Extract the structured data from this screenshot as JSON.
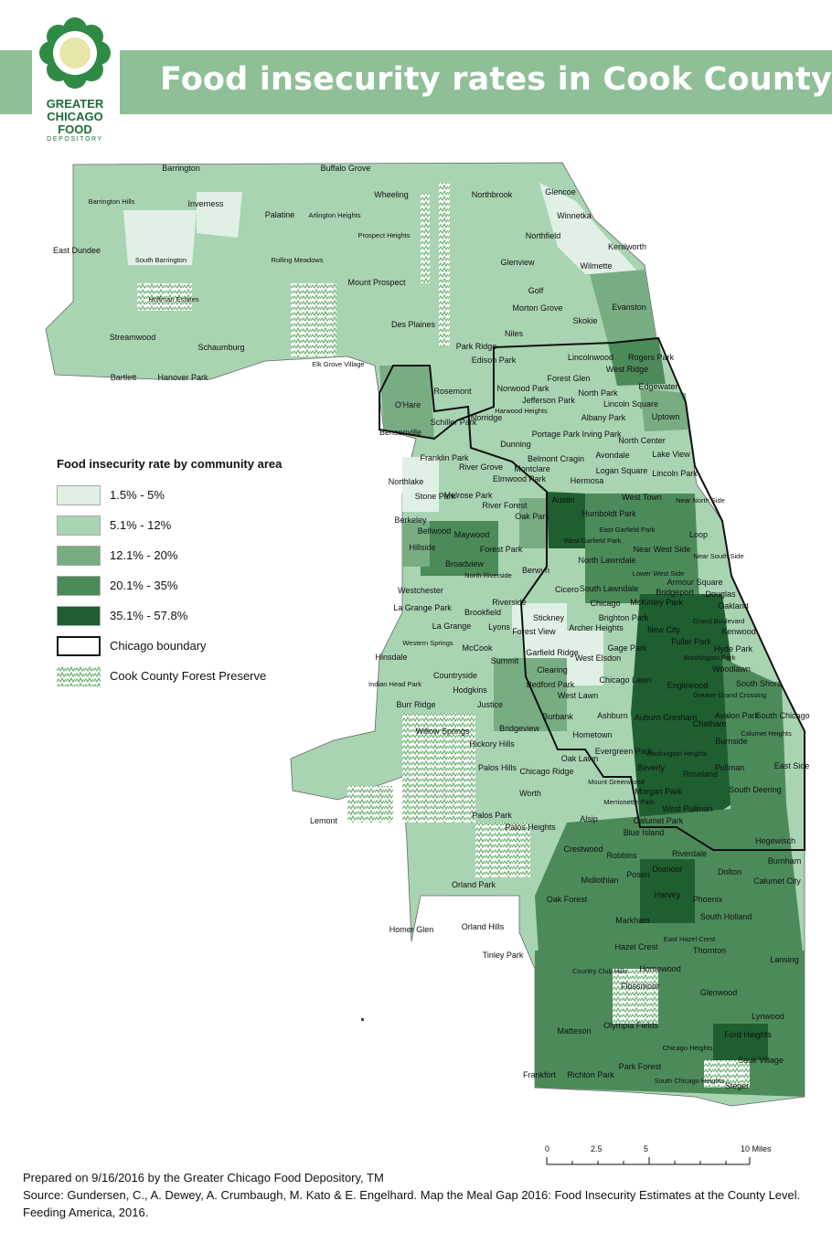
{
  "title": "Food insecurity rates in Cook County",
  "logo": {
    "line1": "GREATER",
    "line2": "CHICAGO",
    "line3": "FOOD",
    "line4": "DEPOSITORY"
  },
  "legend": {
    "title": "Food insecurity rate by community area",
    "items": [
      {
        "label": "1.5% - 5%",
        "color": "#e0f0e5"
      },
      {
        "label": "5.1% - 12%",
        "color": "#a8d4b2"
      },
      {
        "label": "12.1% - 20%",
        "color": "#78ad84"
      },
      {
        "label": "20.1% - 35%",
        "color": "#4c8a5a"
      },
      {
        "label": "35.1% - 57.8%",
        "color": "#1e5e30"
      },
      {
        "label": "Chicago boundary",
        "color": "#ffffff"
      },
      {
        "label": "Cook County Forest Preserve",
        "color": "#ffffff"
      }
    ]
  },
  "scale": {
    "ticks": [
      "0",
      "2.5",
      "5",
      "10 Miles"
    ]
  },
  "footer": {
    "line1": "Prepared on 9/16/2016 by the Greater Chicago Food Depository, TM",
    "line2": "Source: Gundersen, C., A. Dewey, A. Crumbaugh, M. Kato & E. Engelhard. Map the Meal Gap 2016: Food Insecurity Estimates at the County Level. Feeding America, 2016."
  },
  "places": [
    "Barrington",
    "Buffalo Grove",
    "Barrington Hills",
    "Inverness",
    "Palatine",
    "Arlington Heights",
    "Wheeling",
    "Northbrook",
    "Glencoe",
    "Winnetka",
    "East Dundee",
    "South Barrington",
    "Rolling Meadows",
    "Prospect Heights",
    "Northfield",
    "Kenilworth",
    "Glenview",
    "Wilmette",
    "Hoffman Estates",
    "Mount Prospect",
    "Golf",
    "Morton Grove",
    "Evanston",
    "Skokie",
    "Des Plaines",
    "Streamwood",
    "Schaumburg",
    "Niles",
    "Park Ridge",
    "Lincolnwood",
    "Elk Grove Village",
    "Bartlett",
    "Hanover Park",
    "Edison Park",
    "Rogers Park",
    "West Ridge",
    "O'Hare",
    "Rosemont",
    "Forest Glen",
    "Norwood Park",
    "North Park",
    "Edgewater",
    "Jefferson Park",
    "Lincoln Square",
    "Harwood Heights",
    "Norridge",
    "Albany Park",
    "Uptown",
    "Schiller Park",
    "Portage Park",
    "Irving Park",
    "North Center",
    "Bensenville",
    "Dunning",
    "Lake View",
    "Franklin Park",
    "Belmont Cragin",
    "Avondale",
    "Montclare",
    "Logan Square",
    "Lincoln Park",
    "River Grove",
    "Elmwood Park",
    "Hermosa",
    "Northlake",
    "Stone Park",
    "Melrose Park",
    "Austin",
    "West Town",
    "Near North Side",
    "River Forest",
    "Oak Park",
    "Humboldt Park",
    "Berkeley",
    "Bellwood",
    "Maywood",
    "East Garfield Park",
    "West Garfield Park",
    "Loop",
    "Hillside",
    "Forest Park",
    "Near West Side",
    "North Lawndale",
    "Near South Side",
    "Broadview",
    "North Riverside",
    "Berwyn",
    "Lower West Side",
    "Armour Square",
    "Westchester",
    "South Lawndale",
    "Bridgeport",
    "Douglas",
    "Cicero",
    "Riverside",
    "Chicago",
    "McKinley Park",
    "Oakland",
    "La Grange Park",
    "Brookfield",
    "Stickney",
    "Brighton Park",
    "Grand Boulevard",
    "La Grange",
    "Lyons",
    "Archer Heights",
    "New City",
    "Kenwood",
    "Western Springs",
    "Forest View",
    "Fuller Park",
    "McCook",
    "Gage Park",
    "Hyde Park",
    "Hinsdale",
    "Garfield Ridge",
    "Washington Park",
    "Summit",
    "West Elsdon",
    "Woodlawn",
    "Countryside",
    "Clearing",
    "Indian Head Park",
    "Chicago Lawn",
    "Englewood",
    "South Shore",
    "Hodgkins",
    "Bedford Park",
    "Greater Grand Crossing",
    "West Lawn",
    "Burr Ridge",
    "Justice",
    "Ashburn",
    "Auburn Gresham",
    "Avalon Park",
    "South Chicago",
    "Chatham",
    "Burbank",
    "Bridgeview",
    "Calumet Heights",
    "Willow Springs",
    "Hometown",
    "Burnside",
    "Hickory Hills",
    "Evergreen Park",
    "Washington Heights",
    "Oak Lawn",
    "East Side",
    "Palos Hills",
    "Chicago Ridge",
    "Beverly",
    "Pullman",
    "Roseland",
    "Mount Greenwood",
    "South Deering",
    "Worth",
    "Morgan Park",
    "Merrionette Park",
    "Calumet Park",
    "Lemont",
    "Palos Park",
    "West Pullman",
    "Alsip",
    "Riverdale",
    "Hegewisch",
    "Palos Heights",
    "Blue Island",
    "Crestwood",
    "Robbins",
    "Burnham",
    "Dixmoor",
    "Dolton",
    "Calumet City",
    "Midlothian",
    "Posen",
    "Orland Park",
    "Harvey",
    "Phoenix",
    "Oak Forest",
    "South Holland",
    "Markham",
    "Homer Glen",
    "East Hazel Crest",
    "Orland Hills",
    "Hazel Crest",
    "Thornton",
    "Tinley Park",
    "Lansing",
    "Country Club Hills",
    "Homewood",
    "Flossmoor",
    "Glenwood",
    "Olympia Fields",
    "Lynwood",
    "Matteson",
    "Chicago Heights",
    "Ford Heights",
    "Park Forest",
    "Sauk Village",
    "Frankfort",
    "Richton Park",
    "South Chicago Heights",
    "Steger"
  ]
}
